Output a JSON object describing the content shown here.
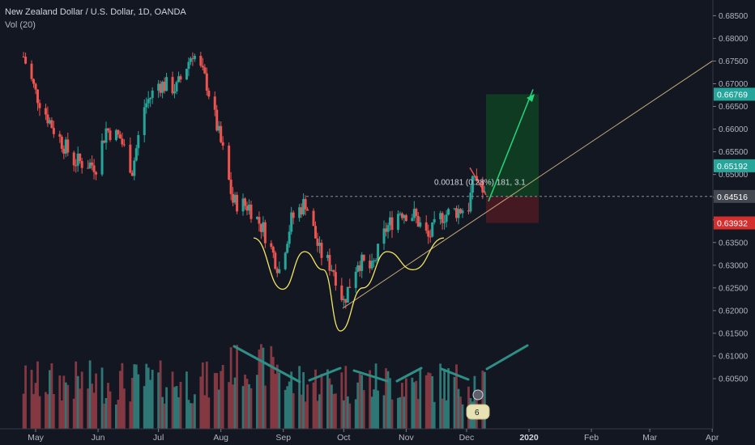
{
  "header": {
    "title": "New Zealand Dollar / U.S. Dollar, 1D, OANDA",
    "volume_label": "Vol (20)"
  },
  "colors": {
    "background": "#131722",
    "up": "#26a69a",
    "down": "#ef5350",
    "volume_up": "#2e7c7a",
    "volume_down": "#8a3a44",
    "pattern_line": "#f5e663",
    "trendline": "#c9a877",
    "volume_trend": "#2d8f86",
    "target_zone": "#0f3f24",
    "stop_zone": "#4a1a22",
    "projection_arrow": "#29d37a",
    "entry_level": "#8b8e96",
    "tp_badge": "#26a69a",
    "sl_badge": "#d32f2f",
    "price_badge": "#43474f"
  },
  "chart_data": {
    "type": "candlestick",
    "title": "New Zealand Dollar / U.S. Dollar, 1D, OANDA",
    "ylim": [
      0.6,
      0.6865
    ],
    "y_ticks": [
      "0.68500",
      "0.68000",
      "0.67500",
      "0.67000",
      "0.66500",
      "0.66000",
      "0.65500",
      "0.65000",
      "0.64500",
      "0.64000",
      "0.63500",
      "0.63000",
      "0.62500",
      "0.62000",
      "0.61500",
      "0.61000",
      "0.60500"
    ],
    "x_ticks": [
      "May",
      "Jun",
      "Jul",
      "Aug",
      "Sep",
      "Oct",
      "Nov",
      "Dec",
      "2020",
      "Feb",
      "Mar",
      "Apr"
    ],
    "grid": false,
    "price_path": [
      {
        "date": "2019-04-25",
        "close": 0.676
      },
      {
        "date": "2019-05-01",
        "close": 0.668
      },
      {
        "date": "2019-05-10",
        "close": 0.66
      },
      {
        "date": "2019-05-20",
        "close": 0.653
      },
      {
        "date": "2019-05-31",
        "close": 0.652
      },
      {
        "date": "2019-06-05",
        "close": 0.66
      },
      {
        "date": "2019-06-12",
        "close": 0.658
      },
      {
        "date": "2019-06-18",
        "close": 0.651
      },
      {
        "date": "2019-06-24",
        "close": 0.665
      },
      {
        "date": "2019-07-01",
        "close": 0.67
      },
      {
        "date": "2019-07-10",
        "close": 0.669
      },
      {
        "date": "2019-07-18",
        "close": 0.677
      },
      {
        "date": "2019-07-25",
        "close": 0.67
      },
      {
        "date": "2019-08-02",
        "close": 0.655
      },
      {
        "date": "2019-08-07",
        "close": 0.644
      },
      {
        "date": "2019-08-15",
        "close": 0.643
      },
      {
        "date": "2019-08-22",
        "close": 0.638
      },
      {
        "date": "2019-08-30",
        "close": 0.629
      },
      {
        "date": "2019-09-05",
        "close": 0.64
      },
      {
        "date": "2019-09-12",
        "close": 0.644
      },
      {
        "date": "2019-09-19",
        "close": 0.633
      },
      {
        "date": "2019-09-26",
        "close": 0.629
      },
      {
        "date": "2019-10-01",
        "close": 0.622
      },
      {
        "date": "2019-10-08",
        "close": 0.631
      },
      {
        "date": "2019-10-15",
        "close": 0.629
      },
      {
        "date": "2019-10-22",
        "close": 0.638
      },
      {
        "date": "2019-10-29",
        "close": 0.642
      },
      {
        "date": "2019-11-05",
        "close": 0.641
      },
      {
        "date": "2019-11-12",
        "close": 0.636
      },
      {
        "date": "2019-11-19",
        "close": 0.641
      },
      {
        "date": "2019-11-26",
        "close": 0.642
      },
      {
        "date": "2019-12-02",
        "close": 0.643
      },
      {
        "date": "2019-12-05",
        "close": 0.65
      },
      {
        "date": "2019-12-10",
        "close": 0.645
      }
    ],
    "series": [
      {
        "name": "Vol (20)",
        "type": "volume"
      }
    ],
    "price_labels": {
      "take_profit": "0.66769",
      "entry": "0.64516",
      "stop_loss": "0.63932",
      "current": "0.65192"
    },
    "levels": {
      "take_profit": 0.66769,
      "entry": 0.64516,
      "stop_loss": 0.63932,
      "current": 0.65192
    },
    "annotations": {
      "position_stats": "0.00181 (0.28%) 181, 3.1",
      "volume_badge": "6"
    }
  }
}
